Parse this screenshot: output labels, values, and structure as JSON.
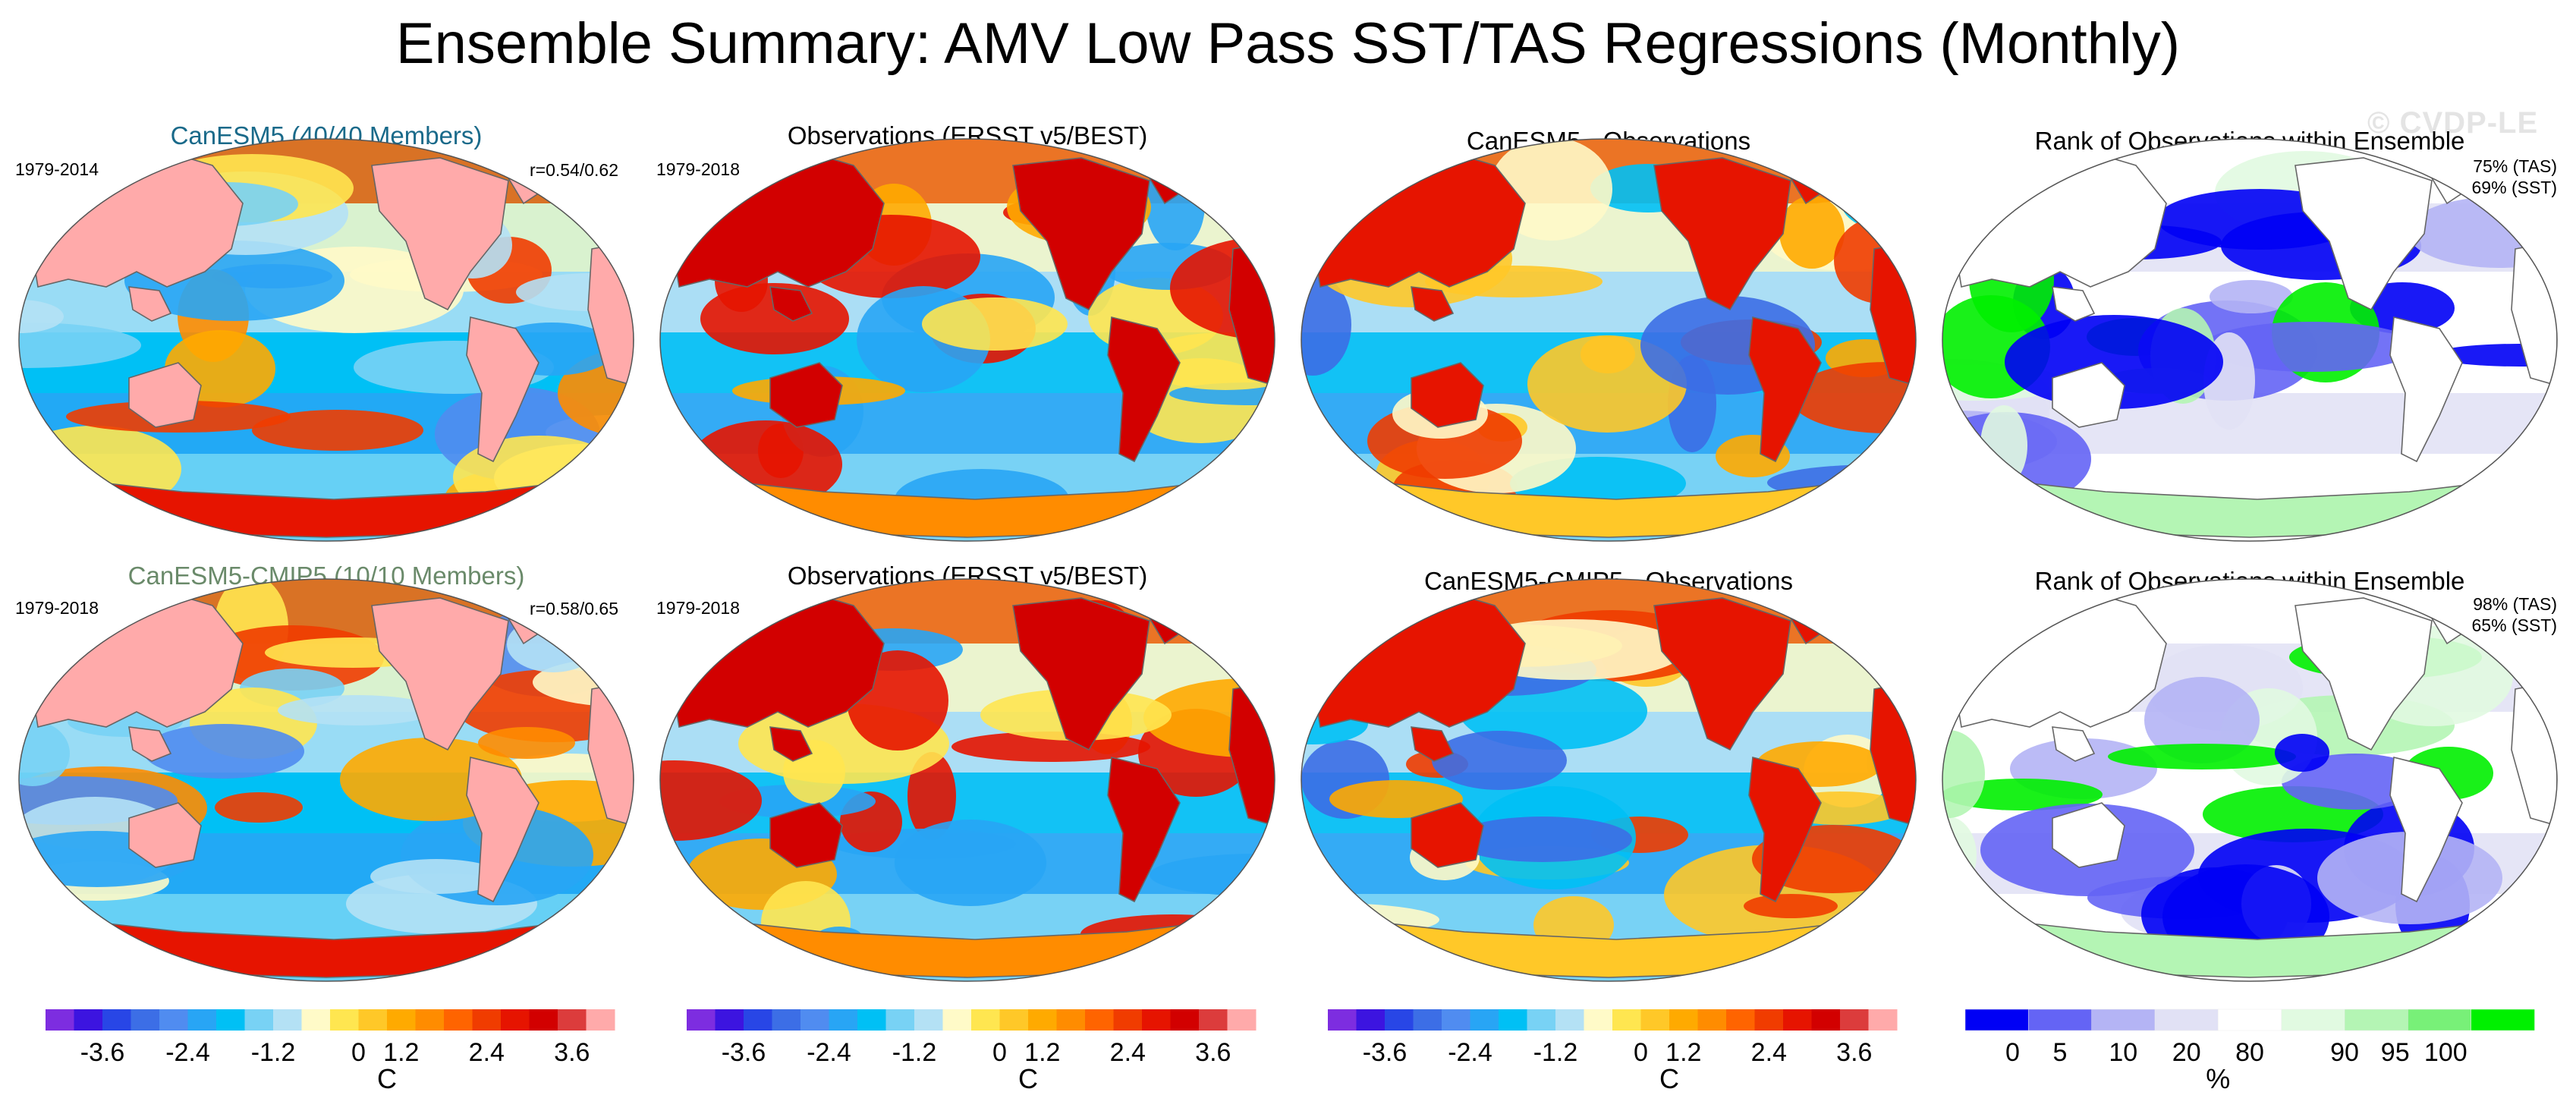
{
  "title": "Ensemble Summary: AMV Low Pass SST/TAS Regressions (Monthly)",
  "watermark": "© CVDP-LE",
  "colors": {
    "model1_title": "#1a6a8a",
    "model2_title": "#6a8a6a",
    "diverging_scale": [
      "#7d2de0",
      "#3c14e0",
      "#2846e6",
      "#3c6ee6",
      "#508cf0",
      "#28a5f5",
      "#00c0f5",
      "#78d2f5",
      "#b4e1f5",
      "#fffac8",
      "#ffe650",
      "#ffc828",
      "#ffaa00",
      "#ff8c00",
      "#ff6400",
      "#f03c00",
      "#e61400",
      "#d20000",
      "#dc3c3c",
      "#ffaaaa"
    ],
    "rank_scale": [
      "#0000f5",
      "#6464f5",
      "#b4b4f5",
      "#e1e1f5",
      "#ffffff",
      "#e1fae1",
      "#b4f5b4",
      "#78f078",
      "#00f000"
    ],
    "land_fill": "#ffb4b4",
    "ocean_base": "#a0d2f0"
  },
  "chart_data": [
    {
      "type": "heatmap",
      "panel": "row1-model",
      "title": "CanESM5 (40/40 Members)",
      "period": "1979-2014",
      "stat": "r=0.54/0.62",
      "units": "C"
    },
    {
      "type": "heatmap",
      "panel": "row1-obs",
      "title": "Observations (ERSST v5/BEST)",
      "period": "1979-2018",
      "units": "C"
    },
    {
      "type": "heatmap",
      "panel": "row1-diff",
      "title": "CanESM5 - Observations",
      "units": "C"
    },
    {
      "type": "heatmap",
      "panel": "row1-rank",
      "title": "Rank of Observations within Ensemble",
      "stats": [
        "75% (TAS)",
        "69% (SST)"
      ],
      "units": "%"
    },
    {
      "type": "heatmap",
      "panel": "row2-model",
      "title": "CanESM5-CMIP5 (10/10 Members)",
      "period": "1979-2018",
      "stat": "r=0.58/0.65",
      "units": "C"
    },
    {
      "type": "heatmap",
      "panel": "row2-obs",
      "title": "Observations (ERSST v5/BEST)",
      "period": "1979-2018",
      "units": "C"
    },
    {
      "type": "heatmap",
      "panel": "row2-diff",
      "title": "CanESM5-CMIP5 - Observations",
      "units": "C"
    },
    {
      "type": "heatmap",
      "panel": "row2-rank",
      "title": "Rank of Observations within Ensemble",
      "stats": [
        "98% (TAS)",
        "65% (SST)"
      ],
      "units": "%"
    }
  ],
  "colorbars": {
    "diverging": {
      "ticks": [
        "-3.6",
        "-2.4",
        "-1.2",
        "0",
        "1.2",
        "2.4",
        "3.6"
      ],
      "unit": "C"
    },
    "rank": {
      "ticks": [
        "0",
        "5",
        "10",
        "20",
        "80",
        "90",
        "95",
        "100"
      ],
      "unit": "%"
    }
  }
}
